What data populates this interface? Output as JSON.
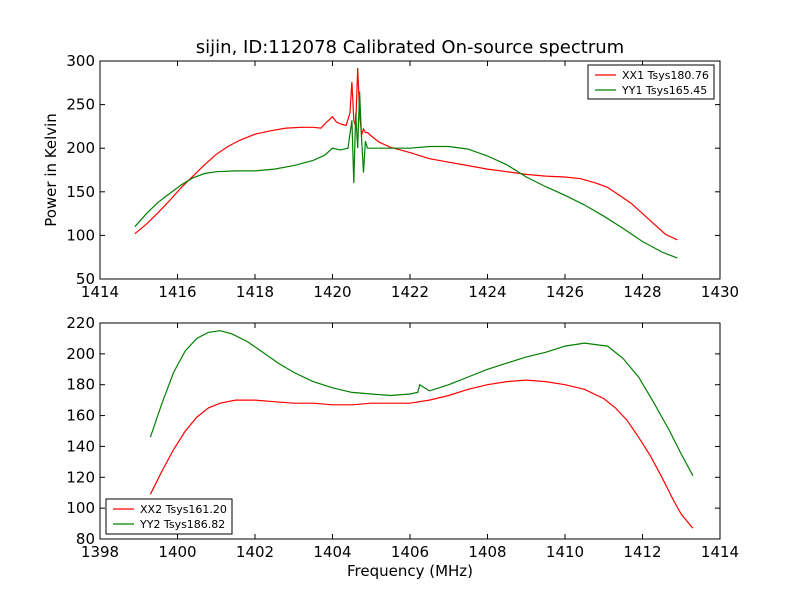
{
  "chart_data": [
    {
      "type": "line",
      "title": "sijin, ID:112078 Calibrated On-source spectrum",
      "xlabel": "",
      "ylabel": "Power in Kelvin",
      "xlim": [
        1414,
        1430
      ],
      "ylim": [
        50,
        300
      ],
      "xticks": [
        1414,
        1416,
        1418,
        1420,
        1422,
        1424,
        1426,
        1428,
        1430
      ],
      "yticks": [
        50,
        100,
        150,
        200,
        250,
        300
      ],
      "grid": false,
      "legend_position": "top-right",
      "series": [
        {
          "name": "XX1 Tsys180.76",
          "color": "#ff0000",
          "x": [
            1414.9,
            1415.2,
            1415.5,
            1415.8,
            1416.1,
            1416.4,
            1416.7,
            1417.0,
            1417.3,
            1417.6,
            1418.0,
            1418.4,
            1418.8,
            1419.2,
            1419.5,
            1419.7,
            1419.85,
            1420.0,
            1420.1,
            1420.2,
            1420.35,
            1420.45,
            1420.5,
            1420.55,
            1420.6,
            1420.65,
            1420.7,
            1420.75,
            1420.8,
            1420.85,
            1420.9,
            1421.0,
            1421.2,
            1421.5,
            1422.0,
            1422.5,
            1423.0,
            1423.5,
            1424.0,
            1424.5,
            1425.0,
            1425.5,
            1426.0,
            1426.4,
            1426.8,
            1427.1,
            1427.4,
            1427.7,
            1428.0,
            1428.3,
            1428.6,
            1428.9
          ],
          "y": [
            102,
            113,
            126,
            140,
            155,
            168,
            181,
            193,
            202,
            209,
            216,
            220,
            223,
            224,
            224,
            223,
            230,
            236,
            230,
            228,
            226,
            240,
            276,
            232,
            225,
            292,
            240,
            215,
            222,
            218,
            218,
            214,
            207,
            201,
            195,
            188,
            184,
            180,
            176,
            173,
            170,
            168,
            167,
            165,
            160,
            155,
            146,
            137,
            125,
            113,
            101,
            95
          ],
          "x_tail_note": ""
        },
        {
          "name": "YY1 Tsys165.45",
          "color": "#008000",
          "x": [
            1414.9,
            1415.2,
            1415.5,
            1415.8,
            1416.1,
            1416.4,
            1416.7,
            1417.0,
            1417.5,
            1418.0,
            1418.5,
            1419.0,
            1419.5,
            1419.8,
            1420.0,
            1420.2,
            1420.4,
            1420.5,
            1420.55,
            1420.6,
            1420.65,
            1420.7,
            1420.75,
            1420.8,
            1420.85,
            1420.9,
            1421.2,
            1421.5,
            1422.0,
            1422.5,
            1423.0,
            1423.5,
            1424.0,
            1424.5,
            1425.0,
            1425.5,
            1426.0,
            1426.5,
            1427.0,
            1427.5,
            1428.0,
            1428.5,
            1428.9
          ],
          "y": [
            110,
            125,
            138,
            148,
            158,
            166,
            171,
            173,
            174,
            174,
            176,
            180,
            186,
            192,
            200,
            198,
            200,
            232,
            160,
            240,
            200,
            265,
            210,
            172,
            208,
            200,
            200,
            200,
            200,
            202,
            202,
            199,
            191,
            181,
            167,
            156,
            146,
            135,
            122,
            108,
            93,
            81,
            74
          ]
        }
      ]
    },
    {
      "type": "line",
      "title": "",
      "xlabel": "Frequency (MHz)",
      "ylabel": "",
      "xlim": [
        1398,
        1414
      ],
      "ylim": [
        80,
        220
      ],
      "xticks": [
        1398,
        1400,
        1402,
        1404,
        1406,
        1408,
        1410,
        1412,
        1414
      ],
      "yticks": [
        80,
        100,
        120,
        140,
        160,
        180,
        200,
        220
      ],
      "grid": false,
      "legend_position": "bottom-left",
      "series": [
        {
          "name": "XX2 Tsys161.20",
          "color": "#ff0000",
          "x": [
            1399.3,
            1399.6,
            1399.9,
            1400.2,
            1400.5,
            1400.8,
            1401.1,
            1401.5,
            1402.0,
            1402.5,
            1403.0,
            1403.5,
            1404.0,
            1404.5,
            1405.0,
            1405.5,
            1406.0,
            1406.5,
            1407.0,
            1407.5,
            1408.0,
            1408.5,
            1409.0,
            1409.5,
            1410.0,
            1410.5,
            1411.0,
            1411.3,
            1411.6,
            1411.9,
            1412.2,
            1412.5,
            1412.8,
            1413.0,
            1413.3
          ],
          "y": [
            109,
            124,
            138,
            150,
            159,
            165,
            168,
            170,
            170,
            169,
            168,
            168,
            167,
            167,
            168,
            168,
            168,
            170,
            173,
            177,
            180,
            182,
            183,
            182,
            180,
            177,
            171,
            165,
            157,
            146,
            134,
            120,
            105,
            96,
            87
          ]
        },
        {
          "name": "YY2 Tsys186.82",
          "color": "#008000",
          "x": [
            1399.3,
            1399.6,
            1399.9,
            1400.2,
            1400.5,
            1400.8,
            1401.1,
            1401.4,
            1401.8,
            1402.2,
            1402.6,
            1403.0,
            1403.5,
            1404.0,
            1404.5,
            1405.0,
            1405.5,
            1406.0,
            1406.2,
            1406.25,
            1406.5,
            1407.0,
            1407.5,
            1408.0,
            1408.5,
            1409.0,
            1409.5,
            1410.0,
            1410.5,
            1410.8,
            1411.1,
            1411.5,
            1411.9,
            1412.3,
            1412.7,
            1413.0,
            1413.3
          ],
          "y": [
            146,
            168,
            188,
            202,
            210,
            214,
            215,
            213,
            208,
            201,
            194,
            188,
            182,
            178,
            175,
            174,
            173,
            174,
            175,
            180,
            176,
            180,
            185,
            190,
            194,
            198,
            201,
            205,
            207,
            206,
            205,
            197,
            185,
            168,
            150,
            135,
            121
          ]
        }
      ]
    }
  ]
}
